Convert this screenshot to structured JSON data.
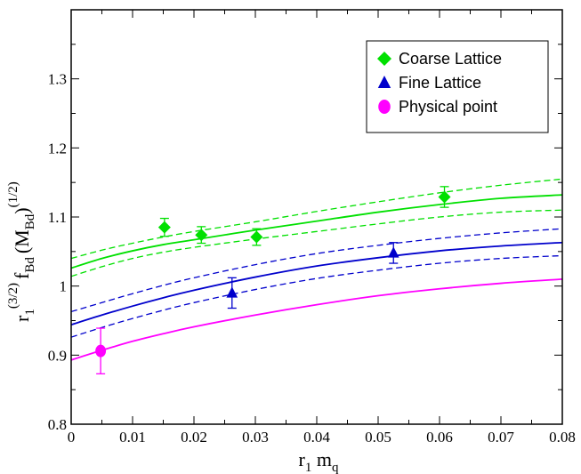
{
  "chart_data": {
    "type": "scatter",
    "xlim": [
      0,
      0.08
    ],
    "ylim": [
      0.8,
      1.4
    ],
    "x_ticks": [
      "0",
      "0.01",
      "0.02",
      "0.03",
      "0.04",
      "0.05",
      "0.06",
      "0.07",
      "0.08"
    ],
    "y_ticks": [
      "0.8",
      "0.9",
      "1",
      "1.1",
      "1.2",
      "1.3"
    ],
    "x_tick_values": [
      0,
      0.01,
      0.02,
      0.03,
      0.04,
      0.05,
      0.06,
      0.07,
      0.08
    ],
    "y_tick_values": [
      0.8,
      0.9,
      1.0,
      1.1,
      1.2,
      1.3
    ],
    "xlabel": {
      "base": "r",
      "sub1": "1",
      "mid": " m",
      "sub2": "q"
    },
    "ylabel": {
      "r": "r",
      "r_sub": "1",
      "r_sup": "(3/2)",
      "f": "f",
      "f_sub": "Bd",
      "m_open": "(M",
      "m_sub": "Bd",
      "m_close": ")",
      "sup": "(1/2)"
    },
    "grid": false,
    "legend_position": "top-right",
    "series": [
      {
        "name": "Coarse Lattice",
        "color": "#00e000",
        "marker": "diamond",
        "points": [
          {
            "x": 0.0152,
            "y": 1.085,
            "err": 0.013
          },
          {
            "x": 0.0212,
            "y": 1.074,
            "err": 0.012
          },
          {
            "x": 0.0302,
            "y": 1.071,
            "err": 0.012
          },
          {
            "x": 0.0608,
            "y": 1.129,
            "err": 0.015
          }
        ],
        "fit_central": [
          [
            0.0,
            1.026
          ],
          [
            0.005,
            1.04
          ],
          [
            0.01,
            1.051
          ],
          [
            0.015,
            1.06
          ],
          [
            0.02,
            1.067
          ],
          [
            0.03,
            1.081
          ],
          [
            0.04,
            1.094
          ],
          [
            0.05,
            1.107
          ],
          [
            0.06,
            1.118
          ],
          [
            0.07,
            1.127
          ],
          [
            0.08,
            1.132
          ]
        ],
        "fit_upper": [
          [
            0.0,
            1.04
          ],
          [
            0.005,
            1.052
          ],
          [
            0.01,
            1.062
          ],
          [
            0.015,
            1.071
          ],
          [
            0.02,
            1.079
          ],
          [
            0.03,
            1.093
          ],
          [
            0.04,
            1.108
          ],
          [
            0.05,
            1.122
          ],
          [
            0.06,
            1.135
          ],
          [
            0.07,
            1.146
          ],
          [
            0.08,
            1.155
          ]
        ],
        "fit_lower": [
          [
            0.0,
            1.014
          ],
          [
            0.005,
            1.028
          ],
          [
            0.01,
            1.04
          ],
          [
            0.015,
            1.049
          ],
          [
            0.02,
            1.056
          ],
          [
            0.03,
            1.068
          ],
          [
            0.04,
            1.079
          ],
          [
            0.05,
            1.09
          ],
          [
            0.06,
            1.1
          ],
          [
            0.07,
            1.107
          ],
          [
            0.08,
            1.11
          ]
        ]
      },
      {
        "name": "Fine Lattice",
        "color": "#0000cc",
        "marker": "triangle",
        "points": [
          {
            "x": 0.0262,
            "y": 0.99,
            "err": 0.022
          },
          {
            "x": 0.0525,
            "y": 1.048,
            "err": 0.015
          }
        ],
        "fit_central": [
          [
            0.0,
            0.944
          ],
          [
            0.005,
            0.958
          ],
          [
            0.01,
            0.971
          ],
          [
            0.015,
            0.983
          ],
          [
            0.02,
            0.994
          ],
          [
            0.03,
            1.013
          ],
          [
            0.04,
            1.029
          ],
          [
            0.05,
            1.041
          ],
          [
            0.06,
            1.051
          ],
          [
            0.07,
            1.058
          ],
          [
            0.08,
            1.063
          ]
        ],
        "fit_upper": [
          [
            0.0,
            0.963
          ],
          [
            0.005,
            0.976
          ],
          [
            0.01,
            0.989
          ],
          [
            0.015,
            1.001
          ],
          [
            0.02,
            1.012
          ],
          [
            0.03,
            1.031
          ],
          [
            0.04,
            1.047
          ],
          [
            0.05,
            1.059
          ],
          [
            0.06,
            1.069
          ],
          [
            0.07,
            1.077
          ],
          [
            0.08,
            1.083
          ]
        ],
        "fit_lower": [
          [
            0.0,
            0.926
          ],
          [
            0.005,
            0.94
          ],
          [
            0.01,
            0.953
          ],
          [
            0.015,
            0.965
          ],
          [
            0.02,
            0.976
          ],
          [
            0.03,
            0.995
          ],
          [
            0.04,
            1.011
          ],
          [
            0.05,
            1.023
          ],
          [
            0.06,
            1.033
          ],
          [
            0.07,
            1.04
          ],
          [
            0.08,
            1.044
          ]
        ]
      },
      {
        "name": "Physical point",
        "color": "#ff00ff",
        "marker": "circle",
        "points": [
          {
            "x": 0.0048,
            "y": 0.906,
            "err": 0.033
          }
        ],
        "fit_central": [
          [
            0.0,
            0.893
          ],
          [
            0.005,
            0.907
          ],
          [
            0.01,
            0.92
          ],
          [
            0.015,
            0.931
          ],
          [
            0.02,
            0.941
          ],
          [
            0.03,
            0.958
          ],
          [
            0.04,
            0.973
          ],
          [
            0.05,
            0.986
          ],
          [
            0.06,
            0.996
          ],
          [
            0.07,
            1.004
          ],
          [
            0.08,
            1.01
          ]
        ]
      }
    ]
  }
}
